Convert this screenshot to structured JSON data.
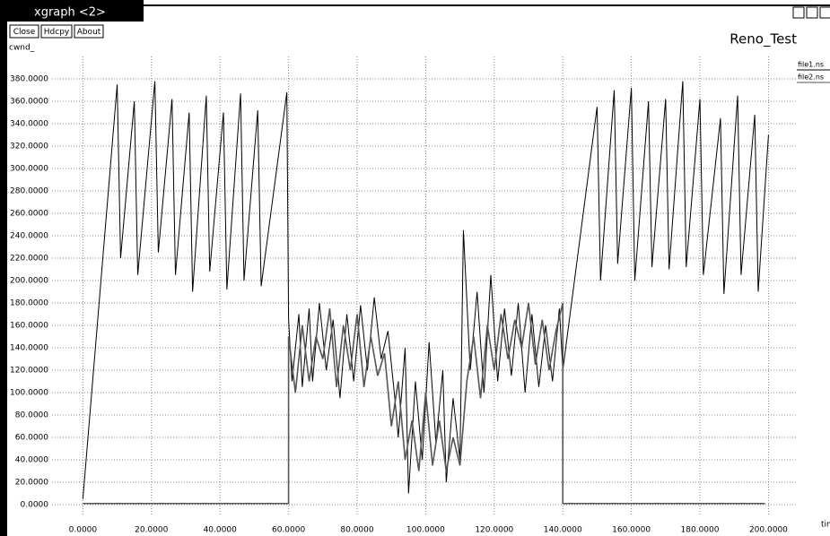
{
  "window_title": "xgraph <2>",
  "buttons": [
    "Close",
    "Hdcpy",
    "About"
  ],
  "chart_data": {
    "type": "line",
    "title": "Reno_Test",
    "y_label": "cwnd_",
    "x_label": "time",
    "xlim": [
      -9,
      208
    ],
    "ylim": [
      -10,
      400
    ],
    "grid": true,
    "legend": "top-right",
    "xticks": [
      {
        "value": 0,
        "label": "0.0000"
      },
      {
        "value": 20,
        "label": "20.0000"
      },
      {
        "value": 40,
        "label": "40.0000"
      },
      {
        "value": 60,
        "label": "60.0000"
      },
      {
        "value": 80,
        "label": "80.0000"
      },
      {
        "value": 100,
        "label": "100.0000"
      },
      {
        "value": 120,
        "label": "120.0000"
      },
      {
        "value": 140,
        "label": "140.0000"
      },
      {
        "value": 160,
        "label": "160.0000"
      },
      {
        "value": 180,
        "label": "180.0000"
      },
      {
        "value": 200,
        "label": "200.0000"
      }
    ],
    "yticks": [
      {
        "value": 0,
        "label": "0.0000"
      },
      {
        "value": 20,
        "label": "20.0000"
      },
      {
        "value": 40,
        "label": "40.0000"
      },
      {
        "value": 60,
        "label": "60.0000"
      },
      {
        "value": 80,
        "label": "80.0000"
      },
      {
        "value": 100,
        "label": "100.0000"
      },
      {
        "value": 120,
        "label": "120.0000"
      },
      {
        "value": 140,
        "label": "140.0000"
      },
      {
        "value": 160,
        "label": "160.0000"
      },
      {
        "value": 180,
        "label": "180.0000"
      },
      {
        "value": 200,
        "label": "200.0000"
      },
      {
        "value": 220,
        "label": "220.0000"
      },
      {
        "value": 240,
        "label": "240.0000"
      },
      {
        "value": 260,
        "label": "260.0000"
      },
      {
        "value": 280,
        "label": "280.0000"
      },
      {
        "value": 300,
        "label": "300.0000"
      },
      {
        "value": 320,
        "label": "320.0000"
      },
      {
        "value": 340,
        "label": "340.0000"
      },
      {
        "value": 360,
        "label": "360.0000"
      },
      {
        "value": 380,
        "label": "380.0000"
      }
    ],
    "series": [
      {
        "name": "file1.ns",
        "color": "#000000",
        "x": [
          0,
          10,
          11,
          15,
          16,
          21,
          22,
          26,
          27,
          31,
          32,
          36,
          37,
          41,
          42,
          46,
          47,
          51,
          52,
          59.5,
          60,
          61,
          63,
          64,
          66,
          67,
          69,
          71,
          73,
          75,
          77,
          79,
          81,
          83,
          85,
          87,
          89,
          91,
          92,
          94,
          95,
          97,
          99,
          101,
          103,
          105,
          106,
          108,
          110,
          111,
          113,
          115,
          117,
          119,
          121,
          123,
          125,
          127,
          129,
          131,
          133,
          135,
          137,
          139,
          140,
          150,
          151,
          155,
          156,
          160,
          161,
          165,
          166,
          170,
          171,
          175,
          176,
          180,
          181,
          186,
          187,
          191,
          192,
          196,
          197,
          200
        ],
        "values": [
          5,
          375,
          220,
          360,
          205,
          378,
          225,
          362,
          205,
          350,
          190,
          365,
          208,
          350,
          192,
          367,
          200,
          352,
          195,
          368,
          165,
          110,
          170,
          105,
          175,
          110,
          180,
          120,
          165,
          95,
          170,
          110,
          178,
          120,
          185,
          130,
          155,
          95,
          60,
          140,
          10,
          110,
          40,
          145,
          55,
          120,
          20,
          95,
          40,
          245,
          120,
          190,
          100,
          205,
          110,
          175,
          115,
          180,
          100,
          170,
          105,
          160,
          110,
          175,
          120,
          355,
          200,
          370,
          215,
          372,
          200,
          360,
          212,
          362,
          210,
          378,
          212,
          362,
          205,
          345,
          188,
          365,
          205,
          348,
          190,
          330
        ]
      },
      {
        "name": "file2.ns",
        "color": "#555555",
        "x": [
          0,
          60,
          60,
          62,
          64,
          66,
          68,
          70,
          72,
          74,
          76,
          78,
          80,
          82,
          84,
          86,
          88,
          90,
          92,
          94,
          96,
          98,
          100,
          102,
          104,
          106,
          108,
          110,
          112,
          114,
          116,
          118,
          120,
          122,
          124,
          126,
          128,
          130,
          132,
          134,
          136,
          138,
          140,
          140,
          199
        ],
        "values": [
          1,
          1,
          150,
          100,
          160,
          110,
          150,
          130,
          175,
          105,
          160,
          120,
          170,
          105,
          150,
          115,
          135,
          70,
          110,
          40,
          75,
          30,
          100,
          35,
          75,
          30,
          60,
          35,
          110,
          150,
          95,
          160,
          120,
          170,
          130,
          165,
          140,
          180,
          125,
          165,
          120,
          155,
          180,
          1,
          1
        ]
      }
    ]
  }
}
